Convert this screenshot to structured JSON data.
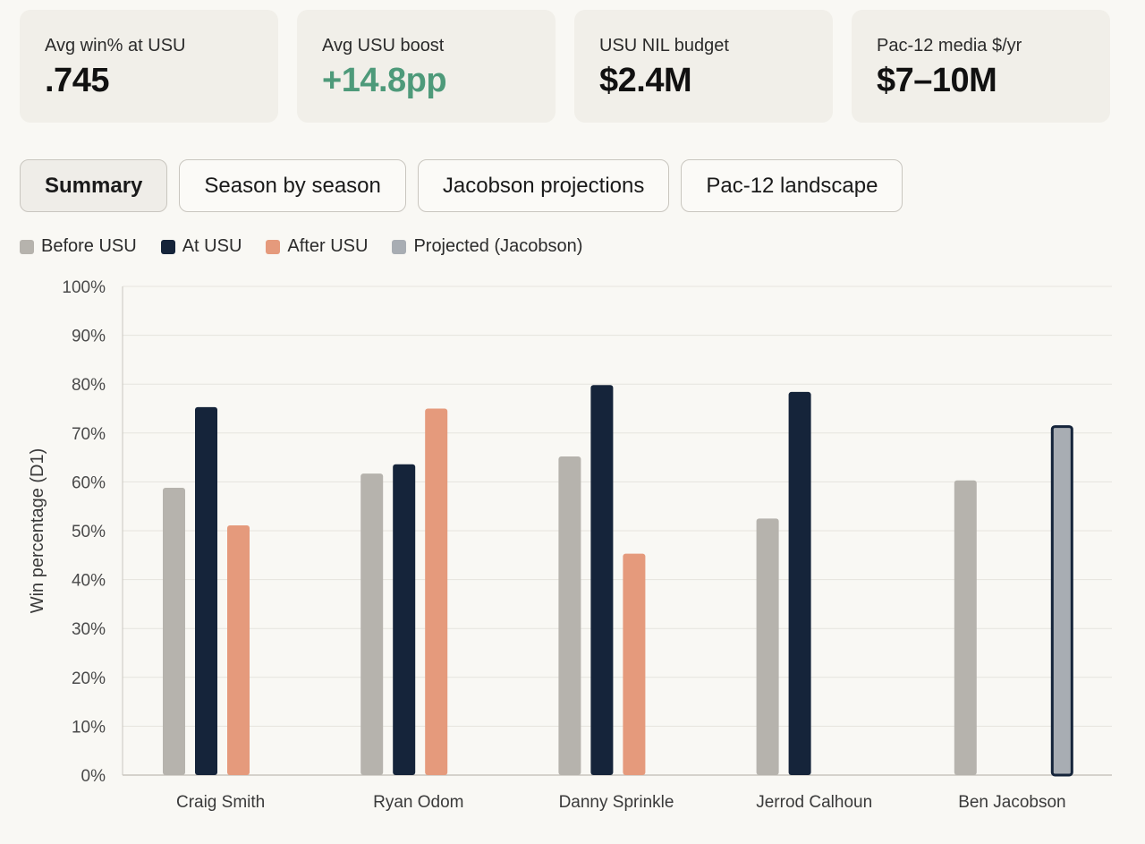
{
  "stats": [
    {
      "label": "Avg win% at USU",
      "value": ".745",
      "tone": "neutral"
    },
    {
      "label": "Avg USU boost",
      "value": "+14.8pp",
      "tone": "positive"
    },
    {
      "label": "USU NIL budget",
      "value": "$2.4M",
      "tone": "neutral"
    },
    {
      "label": "Pac-12 media $/yr",
      "value": "$7–10M",
      "tone": "neutral"
    }
  ],
  "tabs": [
    {
      "label": "Summary",
      "active": true
    },
    {
      "label": "Season by season",
      "active": false
    },
    {
      "label": "Jacobson projections",
      "active": false
    },
    {
      "label": "Pac-12 landscape",
      "active": false
    }
  ],
  "legend": [
    {
      "label": "Before USU",
      "color": "#b6b3ad"
    },
    {
      "label": "At USU",
      "color": "#15243a"
    },
    {
      "label": "After USU",
      "color": "#e59a7c"
    },
    {
      "label": "Projected (Jacobson)",
      "color": "#a8adb3"
    }
  ],
  "colors": {
    "positive": "#4e9a7a",
    "grid": "#e6e4de",
    "axis": "#c9c6bf"
  },
  "chart_data": {
    "type": "bar",
    "ylabel": "Win percentage (D1)",
    "ylim": [
      0,
      100
    ],
    "yticks": [
      "0%",
      "10%",
      "20%",
      "30%",
      "40%",
      "50%",
      "60%",
      "70%",
      "80%",
      "90%",
      "100%"
    ],
    "categories": [
      "Craig Smith",
      "Ryan Odom",
      "Danny Sprinkle",
      "Jerrod Calhoun",
      "Ben Jacobson"
    ],
    "series": [
      {
        "name": "Before USU",
        "values": [
          58.8,
          61.7,
          65.2,
          52.5,
          60.3
        ]
      },
      {
        "name": "At USU",
        "values": [
          75.3,
          63.6,
          79.8,
          78.4,
          null
        ]
      },
      {
        "name": "After USU",
        "values": [
          51.1,
          75.0,
          45.3,
          null,
          null
        ]
      },
      {
        "name": "Projected (Jacobson)",
        "values": [
          null,
          null,
          null,
          null,
          71.6
        ]
      }
    ],
    "grid": true,
    "legend_position": "top-left"
  }
}
